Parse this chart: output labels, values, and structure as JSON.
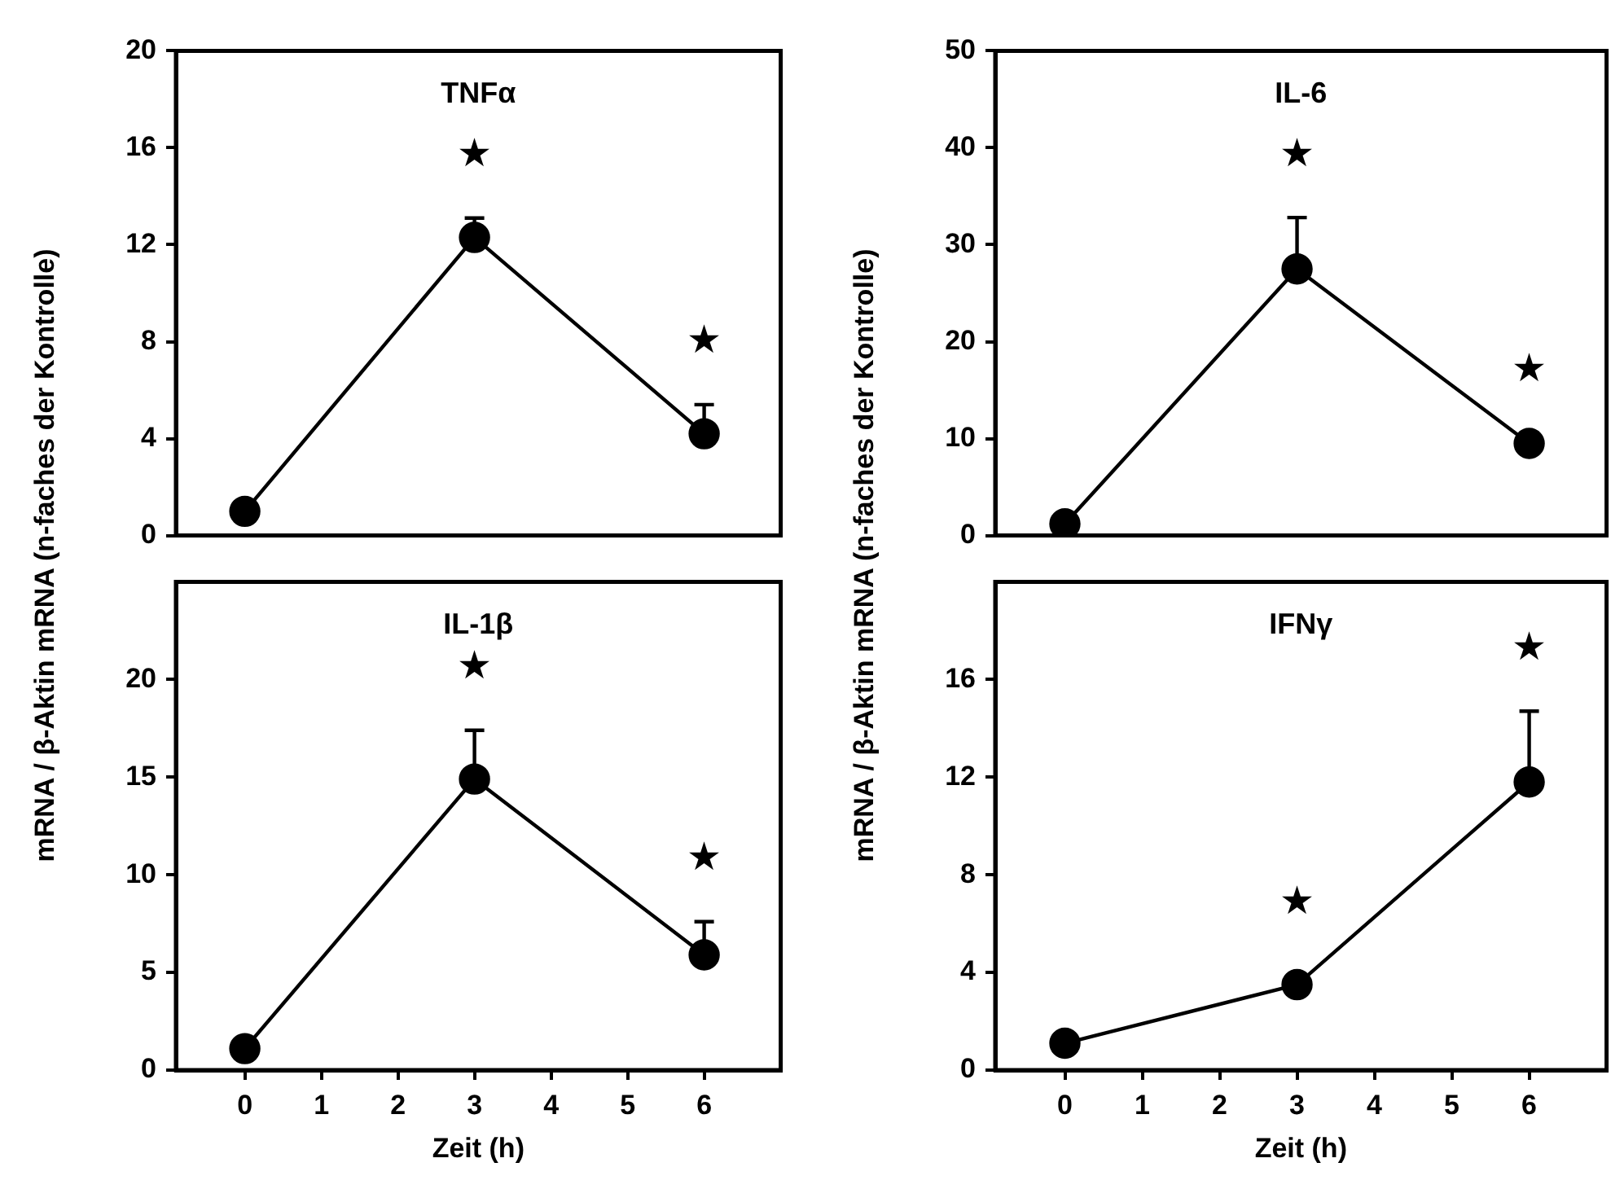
{
  "chart_data": [
    {
      "type": "line",
      "title": "TNFα",
      "ylabel": "mRNA / β-Aktin mRNA (n-faches der Kontrolle)",
      "x": [
        0,
        3,
        6
      ],
      "series": [
        {
          "color": "#000000",
          "values": [
            1.0,
            12.3,
            4.2
          ],
          "errors": [
            null,
            [
              12.3,
              13.1
            ],
            [
              4.2,
              5.4
            ]
          ]
        }
      ],
      "xlim": [
        -0.9,
        7
      ],
      "xticks": [
        0,
        1,
        2,
        3,
        4,
        5,
        6
      ],
      "ylim": [
        0,
        20
      ],
      "yticks": [
        0,
        4,
        8,
        12,
        16,
        20
      ],
      "tick_labels": "y",
      "marker": "circle",
      "line_style": "solid",
      "annotations": [
        "★",
        "★"
      ]
    },
    {
      "type": "line",
      "title": "IL-6",
      "ylabel": "mRNA / β-Aktin mRNA (n-faches der Kontrolle)",
      "x": [
        0,
        3,
        6
      ],
      "series": [
        {
          "color": "#000000",
          "values": [
            1.2,
            27.5,
            9.5
          ],
          "errors": [
            null,
            [
              27.5,
              32.8
            ],
            [
              9.5,
              10.6
            ]
          ]
        }
      ],
      "xlim": [
        -0.9,
        7
      ],
      "xticks": [
        0,
        1,
        2,
        3,
        4,
        5,
        6
      ],
      "ylim": [
        0,
        50
      ],
      "yticks": [
        0,
        10,
        20,
        30,
        40,
        50
      ],
      "tick_labels": "y",
      "marker": "circle",
      "line_style": "solid",
      "annotations": [
        "★",
        "★"
      ]
    },
    {
      "type": "line",
      "title": "IL-1β",
      "xlabel": "Zeit (h)",
      "x": [
        0,
        3,
        6
      ],
      "series": [
        {
          "color": "#000000",
          "values": [
            1.1,
            14.9,
            5.9
          ],
          "errors": [
            null,
            [
              14.9,
              17.4
            ],
            [
              5.9,
              7.6
            ]
          ]
        }
      ],
      "xlim": [
        -0.9,
        7
      ],
      "xticks": [
        0,
        1,
        2,
        3,
        4,
        5,
        6
      ],
      "ylim": [
        0,
        25
      ],
      "yticks": [
        0,
        5,
        10,
        15,
        20
      ],
      "marker": "circle",
      "line_style": "solid",
      "annotations": [
        "★",
        "★"
      ]
    },
    {
      "type": "line",
      "title": "IFNγ",
      "xlabel": "Zeit (h)",
      "x": [
        0,
        3,
        6
      ],
      "series": [
        {
          "color": "#000000",
          "values": [
            1.1,
            3.5,
            11.8
          ],
          "errors": [
            null,
            null,
            [
              11.8,
              14.7
            ]
          ]
        }
      ],
      "xlim": [
        -0.9,
        7
      ],
      "xticks": [
        0,
        1,
        2,
        3,
        4,
        5,
        6
      ],
      "ylim": [
        0,
        20
      ],
      "yticks": [
        0,
        4,
        8,
        12,
        16
      ],
      "marker": "circle",
      "line_style": "solid",
      "annotations": [
        "★",
        "★"
      ]
    }
  ]
}
